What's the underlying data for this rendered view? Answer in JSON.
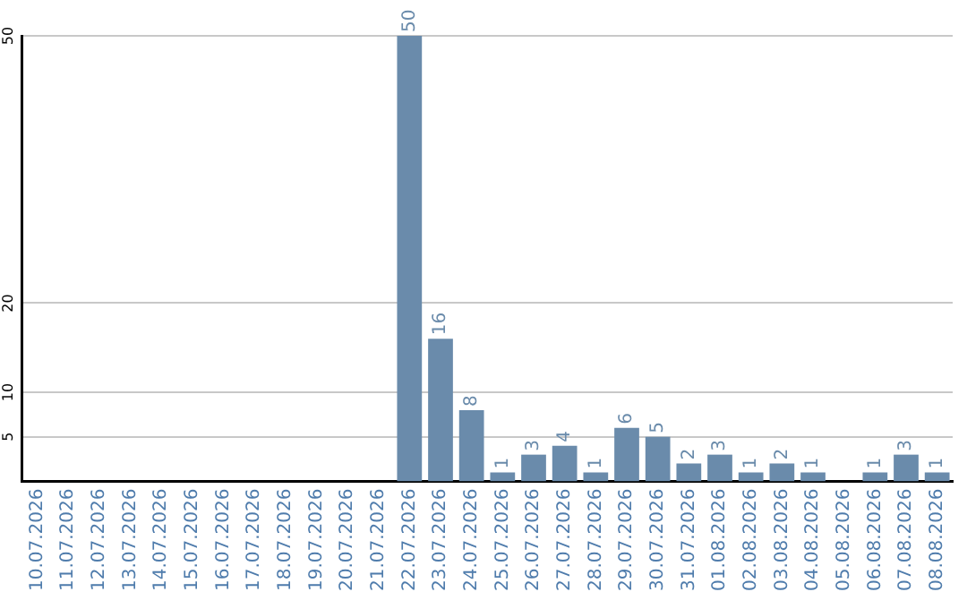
{
  "chart_data": {
    "type": "bar",
    "categories": [
      "10.07.2026",
      "11.07.2026",
      "12.07.2026",
      "13.07.2026",
      "14.07.2026",
      "15.07.2026",
      "16.07.2026",
      "17.07.2026",
      "18.07.2026",
      "19.07.2026",
      "20.07.2026",
      "21.07.2026",
      "22.07.2026",
      "23.07.2026",
      "24.07.2026",
      "25.07.2026",
      "26.07.2026",
      "27.07.2026",
      "28.07.2026",
      "29.07.2026",
      "30.07.2026",
      "31.07.2026",
      "01.08.2026",
      "02.08.2026",
      "03.08.2026",
      "04.08.2026",
      "05.08.2026",
      "06.08.2026",
      "07.08.2026",
      "08.08.2026"
    ],
    "values": [
      0,
      0,
      0,
      0,
      0,
      0,
      0,
      0,
      0,
      0,
      0,
      0,
      50,
      16,
      8,
      1,
      3,
      4,
      1,
      6,
      5,
      2,
      3,
      1,
      2,
      1,
      0,
      1,
      3,
      1
    ],
    "value_labels": [
      null,
      null,
      null,
      null,
      null,
      null,
      null,
      null,
      null,
      null,
      null,
      null,
      "50",
      "16",
      "8",
      "1",
      "3",
      "4",
      "1",
      "6",
      "5",
      "2",
      "3",
      "1",
      "2",
      "1",
      null,
      "1",
      "3",
      "1"
    ],
    "color": "#6a8bab",
    "ylim": [
      0,
      50
    ],
    "yticks": [
      5,
      10,
      20,
      50
    ],
    "grid": "y",
    "legend": false
  }
}
